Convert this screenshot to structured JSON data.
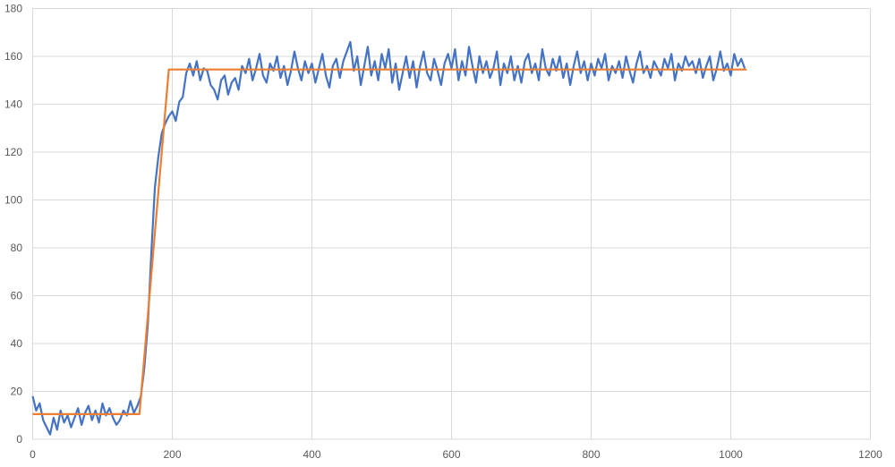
{
  "chart_data": {
    "type": "line",
    "title": "",
    "xlabel": "",
    "ylabel": "",
    "xlim": [
      0,
      1200
    ],
    "ylim": [
      0,
      180
    ],
    "x_ticks": [
      0,
      200,
      400,
      600,
      800,
      1000,
      1200
    ],
    "y_ticks": [
      0,
      20,
      40,
      60,
      80,
      100,
      120,
      140,
      160,
      180
    ],
    "grid": true,
    "legend": "none",
    "series": [
      {
        "color": "#4472C4",
        "x_step": 5,
        "values": [
          18,
          12,
          15,
          8,
          5,
          2,
          9,
          4,
          12,
          7,
          10,
          5,
          9,
          13,
          6,
          11,
          14,
          8,
          12,
          7,
          15,
          10,
          13,
          9,
          6,
          8,
          12,
          10,
          16,
          11,
          14,
          18,
          30,
          48,
          78,
          105,
          118,
          128,
          132,
          135,
          137,
          133,
          141,
          143,
          153,
          157,
          152,
          158,
          150,
          155,
          154,
          148,
          146,
          142,
          150,
          152,
          144,
          149,
          151,
          146,
          156,
          153,
          159,
          150,
          155,
          161,
          152,
          149,
          157,
          154,
          160,
          151,
          156,
          148,
          154,
          162,
          155,
          150,
          158,
          153,
          157,
          149,
          155,
          161,
          152,
          147,
          156,
          159,
          151,
          158,
          162,
          166,
          154,
          160,
          148,
          156,
          164,
          152,
          158,
          150,
          161,
          155,
          163,
          149,
          157,
          146,
          153,
          160,
          151,
          158,
          147,
          156,
          162,
          153,
          150,
          159,
          154,
          148,
          157,
          161,
          155,
          163,
          150,
          158,
          152,
          164,
          156,
          149,
          160,
          153,
          158,
          151,
          155,
          162,
          148,
          157,
          153,
          160,
          150,
          156,
          149,
          158,
          161,
          153,
          157,
          150,
          163,
          155,
          152,
          159,
          154,
          160,
          151,
          157,
          148,
          156,
          162,
          153,
          158,
          150,
          157,
          152,
          159,
          155,
          161,
          150,
          156,
          153,
          158,
          151,
          160,
          154,
          149,
          157,
          162,
          153,
          156,
          151,
          158,
          155,
          152,
          159,
          155,
          161,
          150,
          157,
          154,
          160,
          156,
          158,
          153,
          159,
          151,
          156,
          160,
          150,
          155,
          162,
          154,
          157,
          152,
          161,
          156,
          159,
          155
        ]
      },
      {
        "color": "#ED7D31",
        "points": [
          [
            0,
            10.5
          ],
          [
            153,
            10.5
          ],
          [
            195,
            154.5
          ],
          [
            1023,
            154.5
          ]
        ]
      }
    ]
  }
}
